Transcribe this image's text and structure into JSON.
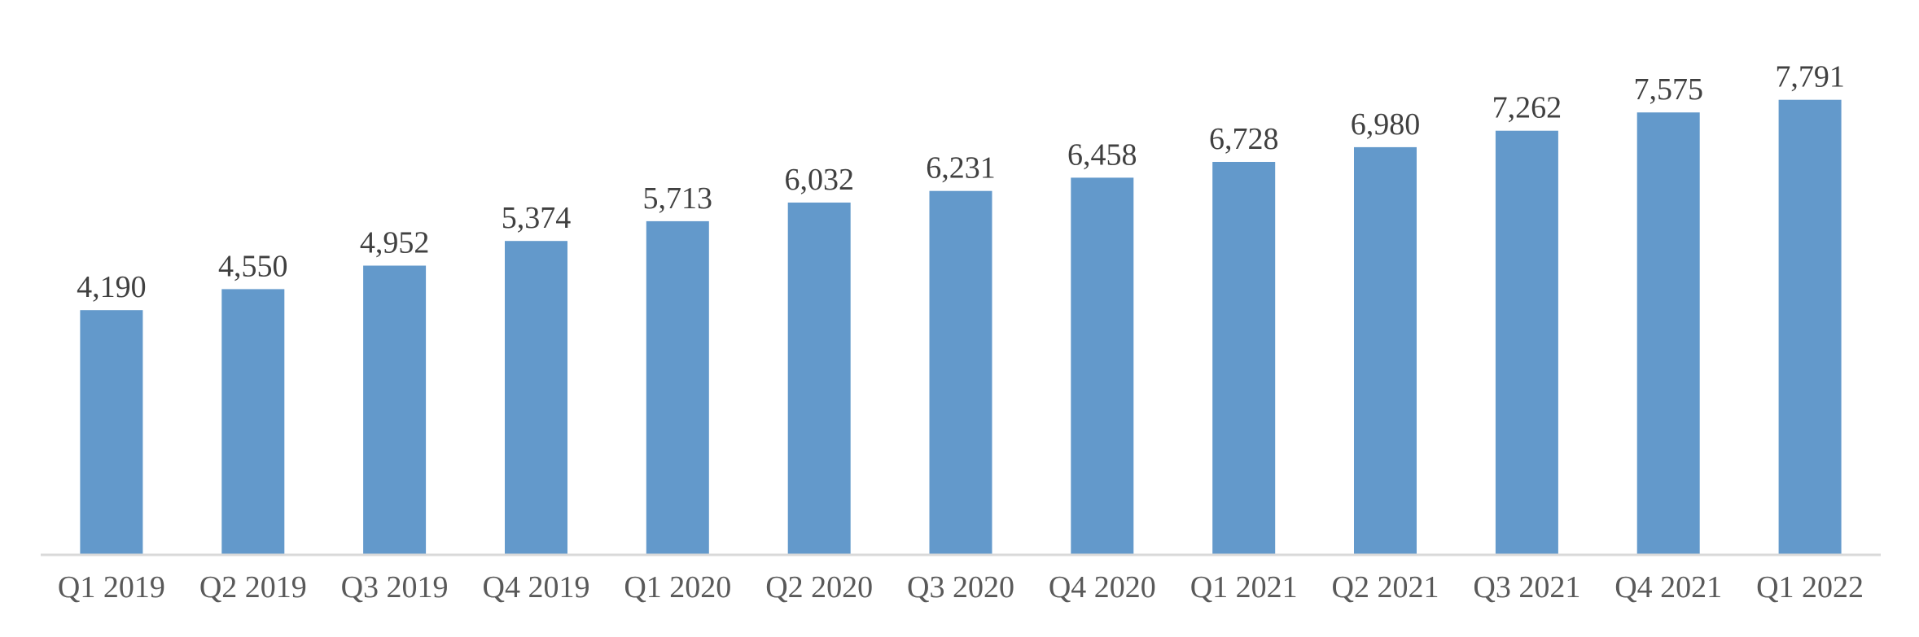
{
  "chart_data": {
    "type": "bar",
    "categories": [
      "Q1 2019",
      "Q2 2019",
      "Q3 2019",
      "Q4 2019",
      "Q1 2020",
      "Q2 2020",
      "Q3 2020",
      "Q4 2020",
      "Q1 2021",
      "Q2 2021",
      "Q3 2021",
      "Q4 2021",
      "Q1 2022"
    ],
    "values": [
      4190,
      4550,
      4952,
      5374,
      5713,
      6032,
      6231,
      6458,
      6728,
      6980,
      7262,
      7575,
      7791
    ],
    "data_labels": [
      "4,190",
      "4,550",
      "4,952",
      "5,374",
      "5,713",
      "6,032",
      "6,231",
      "6,458",
      "6,728",
      "6,980",
      "7,262",
      "7,575",
      "7,791"
    ],
    "title": "",
    "xlabel": "",
    "ylabel": "",
    "ylim": [
      0,
      9500
    ],
    "grid": false,
    "legend": "none",
    "y_axis_visible": false,
    "bar_color": "#6399CB",
    "axis_color": "#D9D9D9",
    "label_color": "#404040",
    "tick_color": "#595959"
  }
}
